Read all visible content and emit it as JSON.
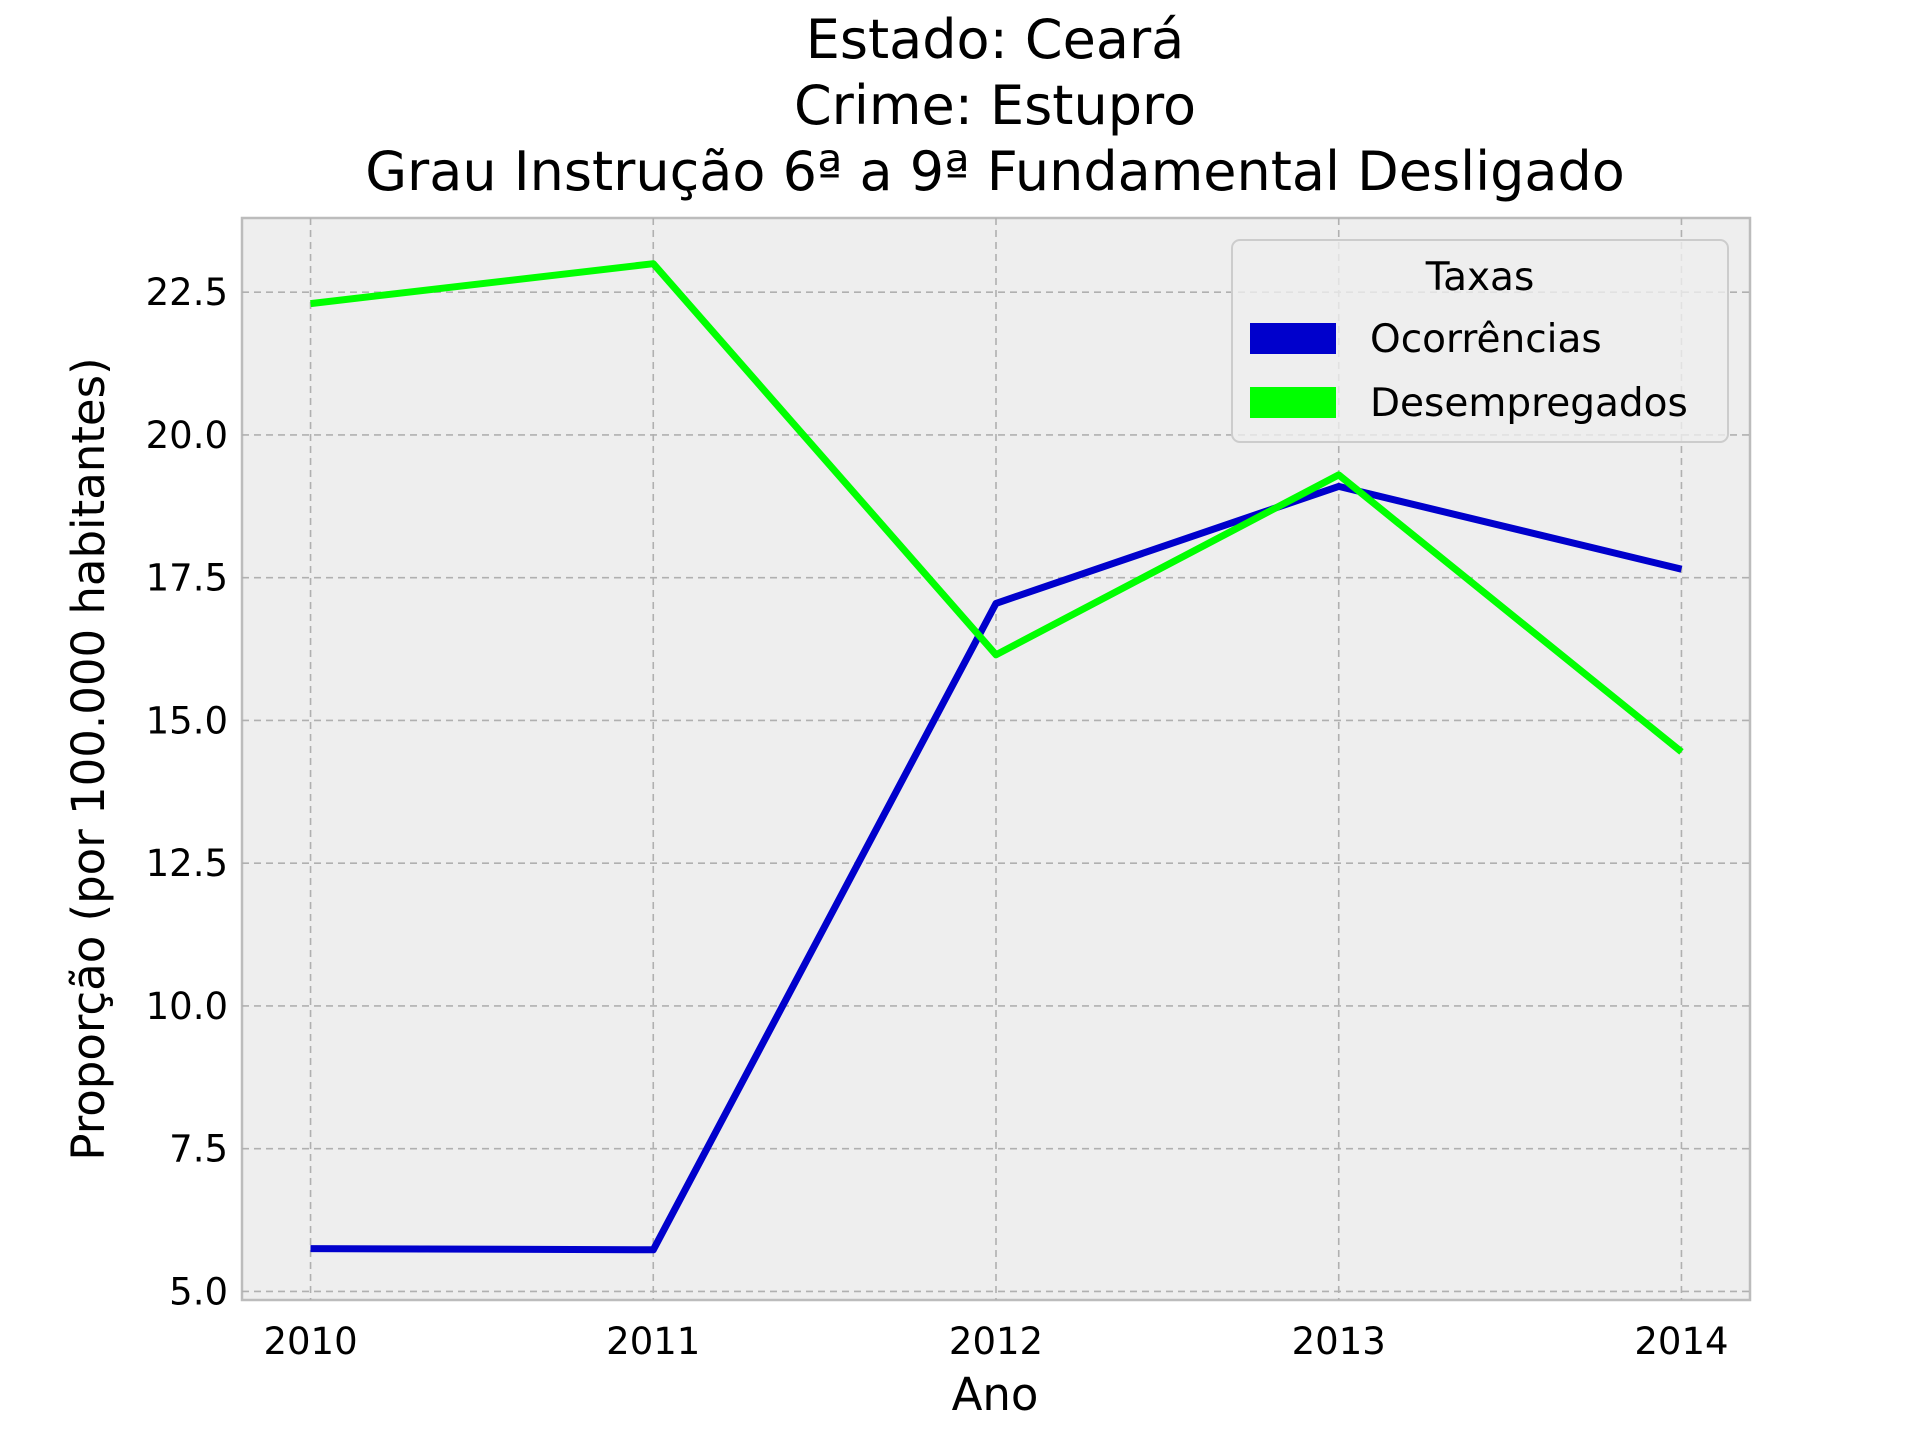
{
  "chart_data": {
    "type": "line",
    "title_lines": [
      "Estado: Ceará",
      "Crime: Estupro",
      "Grau Instrução  6ª a 9ª Fundamental   Desligado"
    ],
    "xlabel": "Ano",
    "ylabel": "Proporção (por 100.000 habitantes)",
    "x": [
      2010,
      2011,
      2012,
      2013,
      2014
    ],
    "x_tick_labels": [
      "2010",
      "2011",
      "2012",
      "2013",
      "2014"
    ],
    "y_ticks": [
      5.0,
      7.5,
      10.0,
      12.5,
      15.0,
      17.5,
      20.0,
      22.5
    ],
    "y_tick_labels": [
      "5.0",
      "7.5",
      "10.0",
      "12.5",
      "15.0",
      "17.5",
      "20.0",
      "22.5"
    ],
    "xlim": [
      2009.8,
      2014.2
    ],
    "ylim": [
      4.85,
      23.8
    ],
    "grid": true,
    "legend": {
      "title": "Taxas",
      "placement": "top-right"
    },
    "series": [
      {
        "name": "Ocorrências",
        "color": "#0000cc",
        "values": [
          5.75,
          5.73,
          17.05,
          19.1,
          17.65
        ]
      },
      {
        "name": "Desempregados",
        "color": "#00ff00",
        "values": [
          22.3,
          23.0,
          16.15,
          19.3,
          14.45
        ]
      }
    ]
  }
}
